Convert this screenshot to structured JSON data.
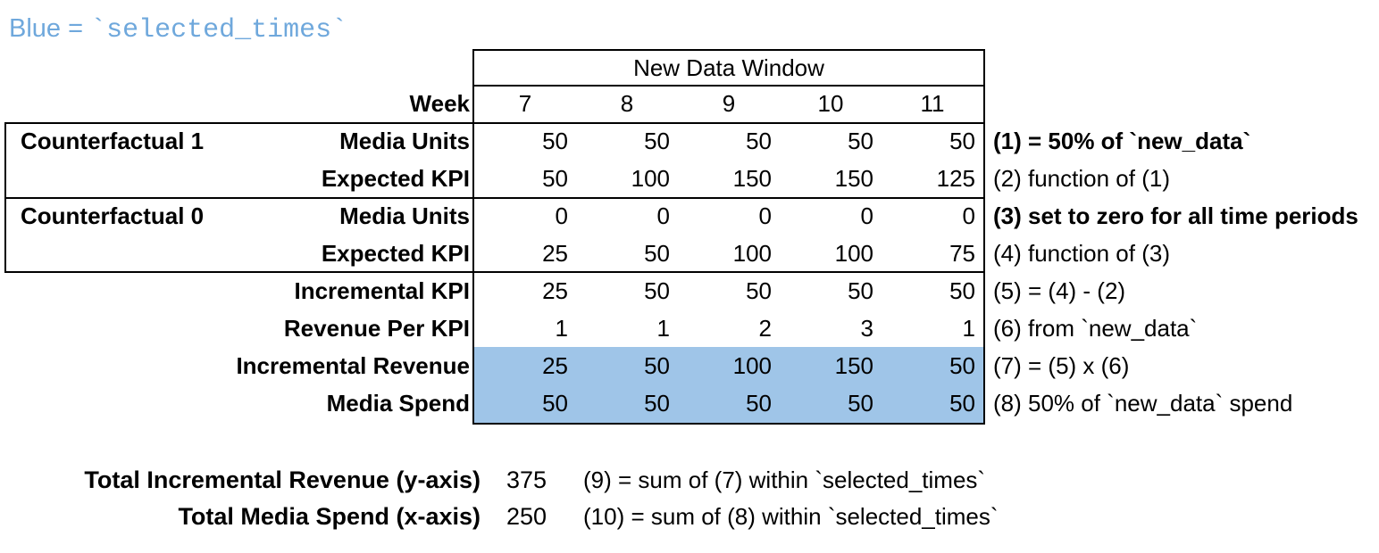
{
  "title": {
    "prefix": "Blue = ",
    "code": "`selected_times`"
  },
  "colors": {
    "highlight": "#9FC5E8",
    "title_text": "#6FA8DC",
    "border": "#000000",
    "text": "#000000",
    "background": "#FFFFFF"
  },
  "table": {
    "window_header": "New Data Window",
    "week_label": "Week",
    "weeks": [
      "7",
      "8",
      "9",
      "10",
      "11"
    ],
    "groups": [
      {
        "label": "Counterfactual 1"
      },
      {
        "label": "Counterfactual 0"
      }
    ],
    "rows": [
      {
        "label": "Media Units",
        "values": [
          "50",
          "50",
          "50",
          "50",
          "50"
        ],
        "note": "(1) = 50% of `new_data`",
        "note_bold": true,
        "highlight": false
      },
      {
        "label": "Expected KPI",
        "values": [
          "50",
          "100",
          "150",
          "150",
          "125"
        ],
        "note": "(2) function of (1)",
        "note_bold": false,
        "highlight": false
      },
      {
        "label": "Media Units",
        "values": [
          "0",
          "0",
          "0",
          "0",
          "0"
        ],
        "note": "(3) set to zero for all time periods",
        "note_bold": true,
        "highlight": false
      },
      {
        "label": "Expected KPI",
        "values": [
          "25",
          "50",
          "100",
          "100",
          "75"
        ],
        "note": "(4) function of (3)",
        "note_bold": false,
        "highlight": false
      },
      {
        "label": "Incremental KPI",
        "values": [
          "25",
          "50",
          "50",
          "50",
          "50"
        ],
        "note": "(5) = (4) - (2)",
        "note_bold": false,
        "highlight": false
      },
      {
        "label": "Revenue Per KPI",
        "values": [
          "1",
          "1",
          "2",
          "3",
          "1"
        ],
        "note": "(6) from `new_data`",
        "note_bold": false,
        "highlight": false
      },
      {
        "label": "Incremental Revenue",
        "values": [
          "25",
          "50",
          "100",
          "150",
          "50"
        ],
        "note": "(7) = (5) x (6)",
        "note_bold": false,
        "highlight": true
      },
      {
        "label": "Media Spend",
        "values": [
          "50",
          "50",
          "50",
          "50",
          "50"
        ],
        "note": "(8) 50% of `new_data` spend",
        "note_bold": false,
        "highlight": true
      }
    ]
  },
  "summary": [
    {
      "label": "Total Incremental Revenue (y-axis)",
      "value": "375",
      "note": "(9) = sum of (7) within `selected_times`"
    },
    {
      "label": "Total Media Spend (x-axis)",
      "value": "250",
      "note": "(10) = sum of (8) within `selected_times`"
    }
  ]
}
